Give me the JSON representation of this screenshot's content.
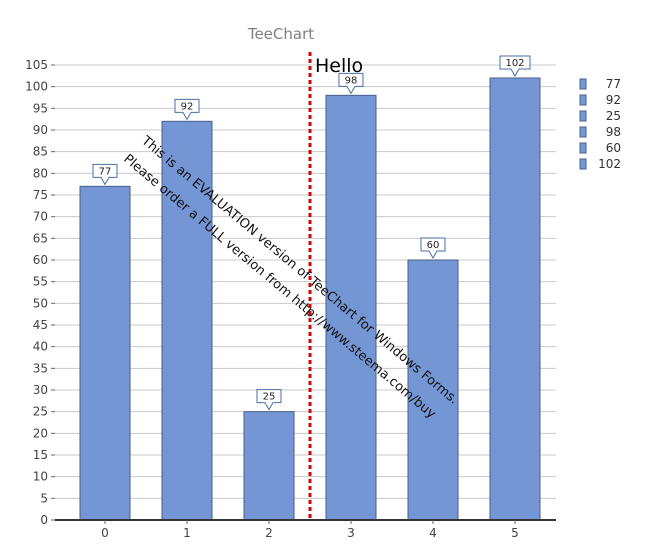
{
  "chart_data": {
    "type": "bar",
    "title": "TeeChart",
    "xlabel": "",
    "ylabel": "",
    "categories": [
      "0",
      "1",
      "2",
      "3",
      "4",
      "5"
    ],
    "series": [
      {
        "values": [
          77,
          92,
          25,
          98,
          60,
          102
        ]
      }
    ],
    "ylim": [
      0,
      105
    ],
    "y_ticks": [
      0,
      5,
      10,
      15,
      20,
      25,
      30,
      35,
      40,
      45,
      50,
      55,
      60,
      65,
      70,
      75,
      80,
      85,
      90,
      95,
      100,
      105
    ],
    "data_labels": [
      "77",
      "92",
      "25",
      "98",
      "60",
      "102"
    ],
    "grid": true,
    "legend": {
      "position": "right",
      "entries": [
        "77",
        "92",
        "25",
        "98",
        "60",
        "102"
      ]
    },
    "colors": {
      "bar_fill": "#7496d4",
      "bar_stroke": "#4a5f8a",
      "grid": "#c8c8c8",
      "axis": "#333333",
      "label_box_stroke": "#4a6fa5",
      "vertical_line": "#dd0000"
    },
    "annotations": {
      "vertical_line_x": 2.5,
      "hello_text": "Hello",
      "watermark_line_1": "This is an EVALUATION version of TeeChart for Windows Forms.",
      "watermark_line_2": "Please order a FULL version from http://www.steema.com/buy"
    }
  }
}
